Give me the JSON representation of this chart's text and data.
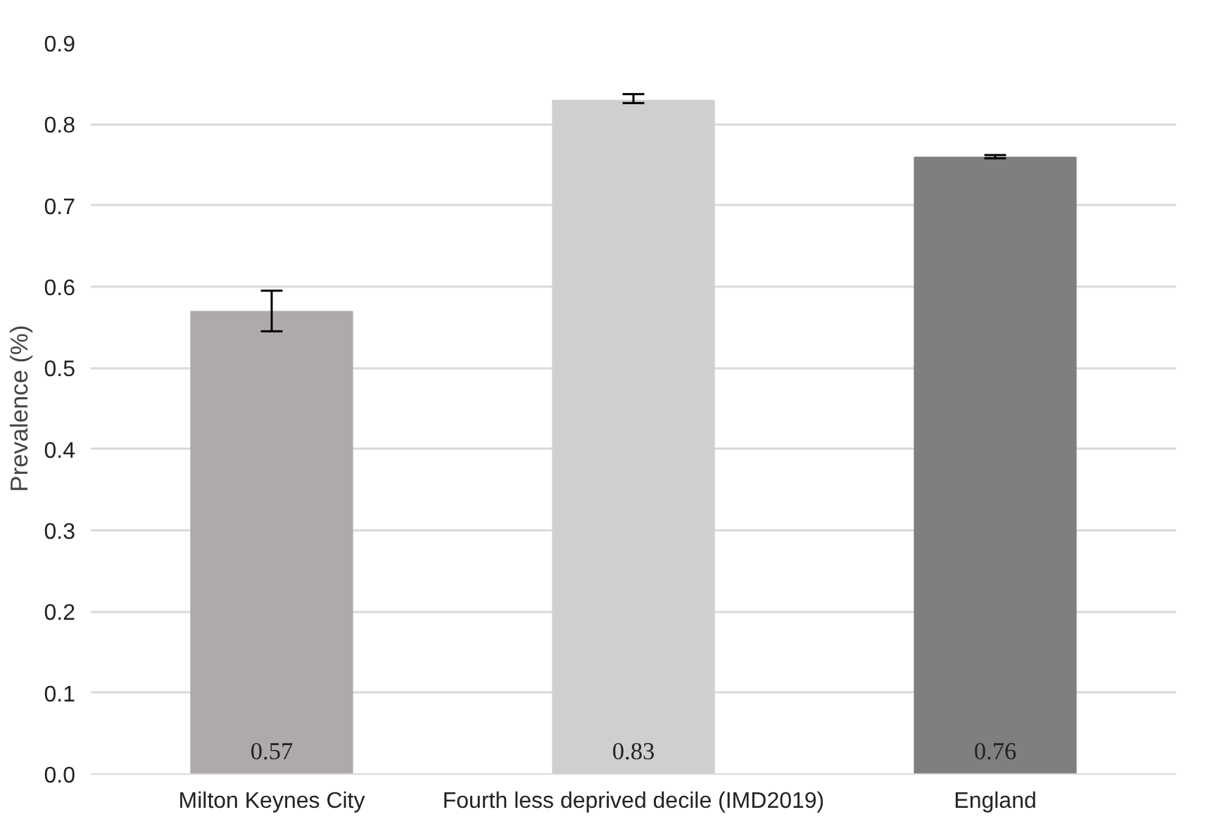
{
  "chart_data": {
    "type": "bar",
    "ylabel": "Prevalence (%)",
    "categories": [
      "Milton Keynes City",
      "Fourth less deprived decile (IMD2019)",
      "England"
    ],
    "values": [
      0.57,
      0.83,
      0.76
    ],
    "colors": [
      "#aeaaaa",
      "#d0cece",
      "#7f7f7f"
    ],
    "errors": [
      [
        0.545,
        0.595
      ],
      [
        0.826,
        0.837
      ],
      [
        0.758,
        0.762
      ]
    ],
    "value_labels": [
      "0.57",
      "0.83",
      "0.76"
    ],
    "ylim": [
      0,
      0.9
    ],
    "yticks": [
      {
        "value": 0,
        "label": "0.0"
      },
      0.1,
      0.2,
      0.3,
      0.4,
      0.5,
      0.6,
      0.7,
      0.8,
      0.9
    ],
    "grid": "y"
  }
}
